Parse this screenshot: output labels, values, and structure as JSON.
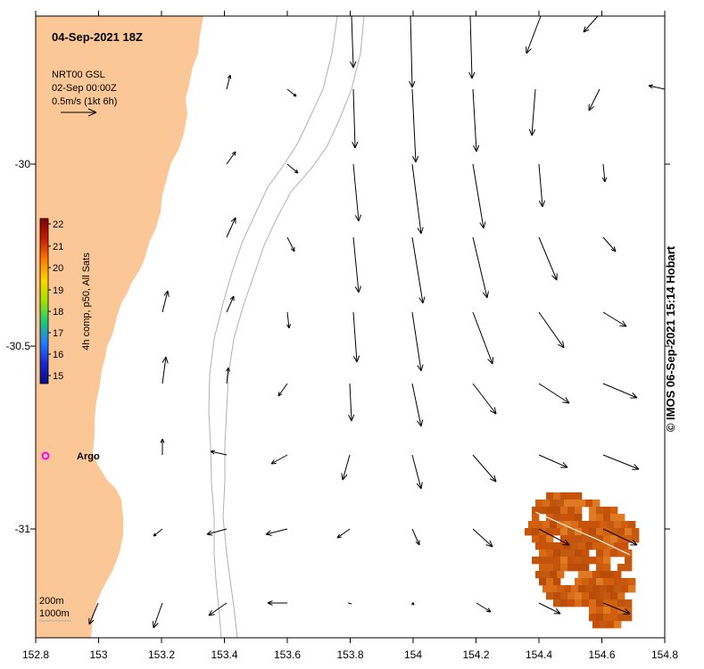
{
  "title": "04-Sep-2021 18Z",
  "altimetry": {
    "product": "NRT00 GSL",
    "date": "02-Sep 00:00Z",
    "scale_label": "0.5m/s (1kt 6h)"
  },
  "sst": {
    "label": "4h comp, p50, All Sats",
    "ticks": [
      "22",
      "21",
      "20",
      "19",
      "18",
      "17",
      "16",
      "15"
    ],
    "colors": [
      "#7f0000",
      "#c81e00",
      "#ff7a00",
      "#ffd400",
      "#9be500",
      "#1ec878",
      "#1f7fff",
      "#1a2ad0",
      "#0a0a80"
    ]
  },
  "argo": {
    "label": "Argo",
    "color": "#ff00ff",
    "lon": 152.81,
    "lat": -30.797
  },
  "isobaths": [
    "200m",
    "1000m"
  ],
  "credit": "© IMOS 06-Sep-2021 15:14 Hobart",
  "axes": {
    "lon_ticks": [
      "152.8",
      "153",
      "153.2",
      "153.4",
      "153.6",
      "153.8",
      "154",
      "154.2",
      "154.4",
      "154.6",
      "154.8"
    ],
    "lat_ticks": [
      "-30",
      "-30.5",
      "-31"
    ],
    "lon_range": [
      152.8,
      154.8
    ],
    "lat_range": [
      -31.3,
      -29.6
    ]
  },
  "colors": {
    "land": "#fcc797",
    "ocean": "#ffffff",
    "isobath": "#b0b0b0",
    "vector": "#000000",
    "sst_patch": "#c85a10"
  }
}
